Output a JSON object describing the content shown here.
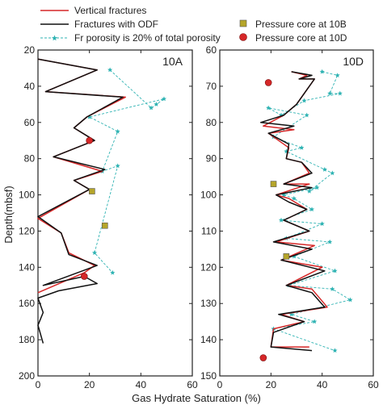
{
  "legend_left": [
    {
      "label": "Vertical fractures",
      "color": "#d62728",
      "style": "line"
    },
    {
      "label": "Fractures with ODF",
      "color": "#111111",
      "style": "line"
    },
    {
      "label": "Fr porosity is 20% of total porosity",
      "color": "#2fb3b3",
      "style": "dash-star"
    }
  ],
  "legend_right": [
    {
      "label": "Pressure core at 10B",
      "color": "#b5a52a",
      "marker": "square"
    },
    {
      "label": "Pressure core at 10D",
      "color": "#d62728",
      "marker": "circle"
    }
  ],
  "shared_labels": {
    "xlabel": "Gas Hydrate Saturation (%)",
    "ylabel": "Depth(mbsf)"
  },
  "chart_data": [
    {
      "type": "line",
      "panel_label": "10A",
      "xlim": [
        0,
        60
      ],
      "ylim": [
        20,
        200
      ],
      "y_inverted": true,
      "xticks": [
        0,
        20,
        40,
        60
      ],
      "yticks": [
        20,
        40,
        60,
        80,
        100,
        120,
        140,
        160,
        180,
        200
      ],
      "series": [
        {
          "name": "Vertical fractures",
          "color": "#d62728",
          "points": [
            [
              0,
              25
            ],
            [
              23,
              31
            ],
            [
              3,
              43
            ],
            [
              34,
              46
            ],
            [
              19,
              57
            ],
            [
              14,
              63
            ],
            [
              22,
              70
            ],
            [
              6,
              79
            ],
            [
              25,
              87
            ],
            [
              14,
              92
            ],
            [
              20,
              97
            ],
            [
              0,
              113
            ],
            [
              9,
              121
            ],
            [
              12,
              132
            ],
            [
              22,
              139
            ],
            [
              18,
              143
            ],
            [
              0,
              154
            ]
          ]
        },
        {
          "name": "Fractures with ODF",
          "color": "#111111",
          "points": [
            [
              0,
              25
            ],
            [
              23,
              31
            ],
            [
              3,
              43
            ],
            [
              33,
              46
            ],
            [
              19,
              57
            ],
            [
              14,
              63
            ],
            [
              22,
              70
            ],
            [
              6,
              79
            ],
            [
              26,
              86
            ],
            [
              14,
              92
            ],
            [
              20,
              97
            ],
            [
              0,
              112
            ],
            [
              9,
              121
            ],
            [
              12,
              133
            ],
            [
              23,
              139
            ],
            [
              2,
              150
            ],
            [
              18,
              145
            ],
            [
              23,
              149
            ],
            [
              8,
              153
            ],
            [
              0,
              157
            ],
            [
              2,
              165
            ],
            [
              0,
              172
            ],
            [
              2,
              182
            ]
          ]
        },
        {
          "name": "Fr porosity is 20% of total porosity",
          "color": "#2fb3b3",
          "dashed": true,
          "points": [
            [
              28,
              31
            ],
            [
              44,
              52
            ],
            [
              46,
              50
            ],
            [
              49,
              47
            ],
            [
              20,
              57
            ],
            [
              31,
              65
            ],
            [
              25,
              87
            ],
            [
              31,
              84
            ],
            [
              22,
              132
            ],
            [
              29,
              143
            ]
          ]
        }
      ],
      "pressure_core_10B": [
        [
          21,
          98
        ],
        [
          26,
          117
        ]
      ],
      "pressure_core_10D": [
        [
          20,
          70
        ],
        [
          18,
          145
        ]
      ]
    },
    {
      "type": "line",
      "panel_label": "10D",
      "xlim": [
        0,
        60
      ],
      "ylim": [
        60,
        150
      ],
      "y_inverted": true,
      "xticks": [
        0,
        20,
        40,
        60
      ],
      "yticks": [
        60,
        70,
        80,
        90,
        100,
        110,
        120,
        130,
        140,
        150
      ],
      "series": [
        {
          "name": "Vertical fractures",
          "color": "#d62728",
          "points": [
            [
              28,
              66
            ],
            [
              34,
              67
            ],
            [
              31,
              68
            ],
            [
              37,
              68
            ],
            [
              30,
              75
            ],
            [
              25,
              78
            ],
            [
              17,
              81
            ],
            [
              29,
              82
            ],
            [
              19,
              83
            ],
            [
              27,
              87
            ],
            [
              26,
              90
            ],
            [
              32,
              91
            ],
            [
              35,
              94
            ],
            [
              25,
              97
            ],
            [
              35,
              97
            ],
            [
              22,
              100
            ],
            [
              27,
              101
            ],
            [
              34,
              104
            ],
            [
              25,
              107
            ],
            [
              35,
              110
            ],
            [
              22,
              113
            ],
            [
              37,
              114
            ],
            [
              24,
              118
            ],
            [
              40,
              120
            ],
            [
              26,
              125
            ],
            [
              36,
              126
            ],
            [
              42,
              131
            ],
            [
              24,
              133
            ],
            [
              33,
              135
            ],
            [
              21,
              137
            ],
            [
              20,
              142
            ],
            [
              35,
              142
            ]
          ]
        },
        {
          "name": "Fractures with ODF",
          "color": "#111111",
          "points": [
            [
              28,
              66
            ],
            [
              36,
              67
            ],
            [
              31,
              68
            ],
            [
              37,
              68
            ],
            [
              30,
              75
            ],
            [
              25,
              78
            ],
            [
              16,
              80
            ],
            [
              29,
              81
            ],
            [
              19,
              83
            ],
            [
              27,
              86
            ],
            [
              26,
              90
            ],
            [
              32,
              91
            ],
            [
              36,
              94
            ],
            [
              25,
              97
            ],
            [
              36,
              98
            ],
            [
              22,
              100
            ],
            [
              27,
              102
            ],
            [
              34,
              104
            ],
            [
              25,
              107
            ],
            [
              35,
              110
            ],
            [
              21,
              113
            ],
            [
              36,
              115
            ],
            [
              24,
              118
            ],
            [
              41,
              121
            ],
            [
              26,
              125
            ],
            [
              36,
              127
            ],
            [
              41,
              131
            ],
            [
              23,
              133
            ],
            [
              33,
              135
            ],
            [
              21,
              138
            ],
            [
              20,
              142
            ],
            [
              36,
              143
            ]
          ]
        },
        {
          "name": "Fr porosity is 20% of total porosity",
          "color": "#2fb3b3",
          "dashed": true,
          "points": [
            [
              40,
              66
            ],
            [
              46,
              67
            ],
            [
              43,
              72
            ],
            [
              47,
              72
            ],
            [
              33,
              74
            ],
            [
              24,
              78
            ],
            [
              19,
              76
            ],
            [
              34,
              78
            ],
            [
              21,
              84
            ],
            [
              32,
              87
            ],
            [
              26,
              88
            ],
            [
              41,
              93
            ],
            [
              44,
              94
            ],
            [
              35,
              99
            ],
            [
              38,
              98
            ],
            [
              25,
              100
            ],
            [
              29,
              101
            ],
            [
              36,
              104
            ],
            [
              24,
              107
            ],
            [
              40,
              108
            ],
            [
              26,
              112
            ],
            [
              43,
              113
            ],
            [
              29,
              117
            ],
            [
              45,
              121
            ],
            [
              27,
              125
            ],
            [
              44,
              126
            ],
            [
              51,
              129
            ],
            [
              28,
              133
            ],
            [
              37,
              135
            ],
            [
              21,
              137
            ],
            [
              45,
              143
            ]
          ]
        }
      ],
      "pressure_core_10B": [
        [
          21,
          97
        ],
        [
          26,
          117
        ]
      ],
      "pressure_core_10D": [
        [
          19,
          69
        ],
        [
          17,
          145
        ]
      ]
    }
  ]
}
